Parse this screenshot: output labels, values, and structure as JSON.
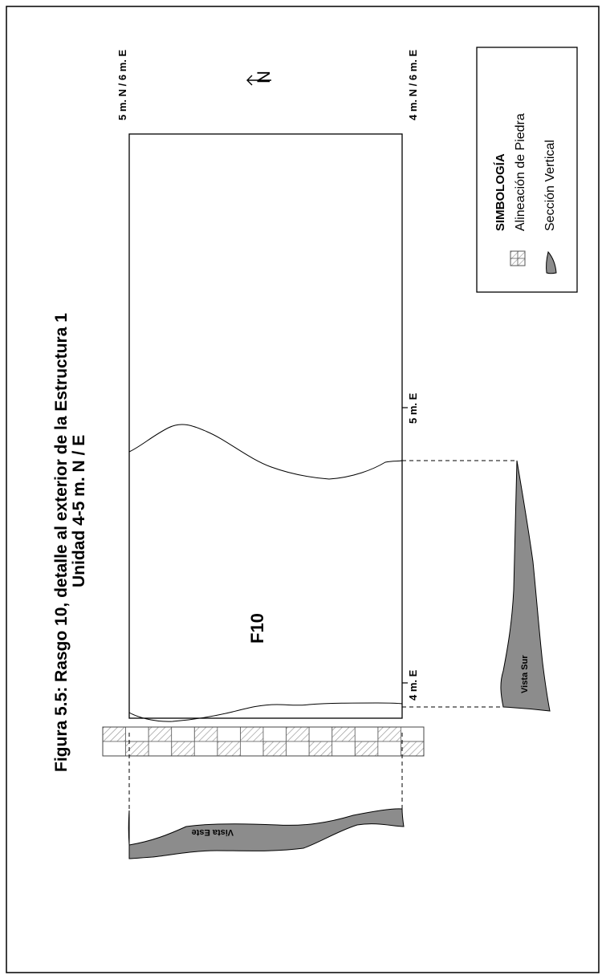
{
  "title": {
    "line1": "Figura 5.5: Rasgo 10, detalle al exterior de la Estructura 1",
    "line2": "Unidad 4-5 m. N / E"
  },
  "grid_labels": {
    "top_left": "5 m. N / 6 m. E",
    "bottom_left": "4 m. N / 6 m. E",
    "bottom_mid_5": "5 m. E",
    "bottom_mid_4": "4 m. E"
  },
  "feature_label": "F10",
  "north_label": "N",
  "sections": {
    "south_view": "Vista Sur",
    "east_view": "Vista Este"
  },
  "legend": {
    "title": "SIMBOLOGÍA",
    "items": [
      {
        "label": "Alineación de Piedra",
        "icon": "stone-alignment-icon"
      },
      {
        "label": "Sección Vertical",
        "icon": "vertical-section-icon"
      }
    ]
  },
  "colors": {
    "section_fill": "#8c8c8c",
    "hatch": "#999999",
    "line": "#000000"
  }
}
